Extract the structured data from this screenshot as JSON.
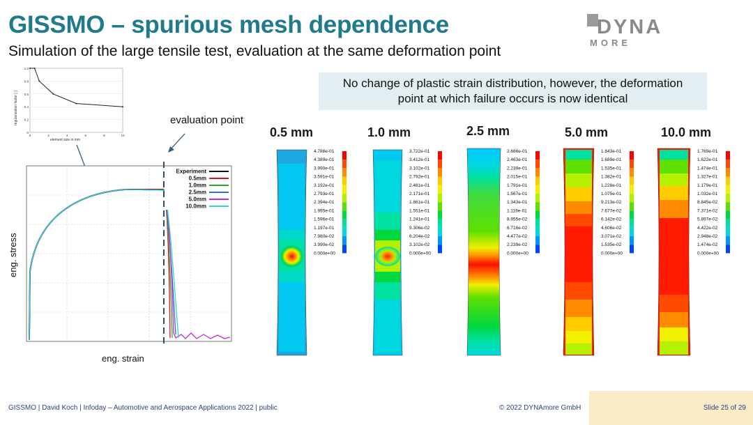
{
  "slide": {
    "title": "GISSMO – spurious mesh dependence",
    "subtitle": "Simulation of the large tensile test, evaluation at the same deformation point",
    "callout_line1": "No change of plastic strain distribution, however, the deformation",
    "callout_line2": "point at which failure occurs is now identical",
    "eval_label": "evaluation point",
    "logo": {
      "top": "DYNA",
      "bottom": "MORE",
      "color": "#8a8a8a"
    }
  },
  "inset_chart": {
    "ylabel": "regularization factor [-]",
    "xlabel": "element size in mm",
    "yticks": [
      "1.0",
      "0.8",
      "0.6",
      "0.4",
      "0.2",
      "0"
    ],
    "xticks": [
      "0",
      "2",
      "4",
      "6",
      "8",
      "10"
    ]
  },
  "main_chart": {
    "xlabel": "eng. strain",
    "ylabel": "eng. stress"
  },
  "chart_data": [
    {
      "type": "line",
      "ylabel": "regularization factor [-]",
      "xlabel": "element size in mm",
      "xlim": [
        0,
        10
      ],
      "ylim": [
        0,
        1.0
      ],
      "series": [
        {
          "x": [
            0,
            0.5,
            1.0,
            2.5,
            5.0,
            10.0
          ],
          "values": [
            1.0,
            1.0,
            0.8,
            0.6,
            0.45,
            0.4
          ]
        }
      ]
    },
    {
      "type": "line",
      "xlabel": "eng. strain",
      "ylabel": "eng. stress",
      "legend": [
        "Experiment",
        "0.5mm",
        "1.0mm",
        "2.5mm",
        "5.0mm",
        "10.0mm"
      ],
      "legend_colors": [
        "#111111",
        "#e8141a",
        "#2faa2f",
        "#2d6fd6",
        "#c62bd9",
        "#2fd6d6"
      ],
      "legend_position": "top-right"
    }
  ],
  "contours": [
    {
      "label": "0.5 mm",
      "values": [
        "4.788e-01",
        "4.389e-01",
        "3.990e-01",
        "3.591e-01",
        "3.192e-01",
        "2.793e-01",
        "2.394e-01",
        "1.995e-01",
        "1.596e-01",
        "1.197e-01",
        "7.980e-02",
        "3.990e-02",
        "0.000e+00"
      ]
    },
    {
      "label": "1.0 mm",
      "values": [
        "3.722e-01",
        "3.412e-01",
        "3.102e-01",
        "2.792e-01",
        "2.481e-01",
        "2.171e-01",
        "1.861e-01",
        "1.551e-01",
        "1.241e-01",
        "9.306e-02",
        "6.204e-02",
        "3.102e-02",
        "0.000e+00"
      ]
    },
    {
      "label": "2.5 mm",
      "values": [
        "2.686e-01",
        "2.463e-01",
        "2.239e-01",
        "2.015e-01",
        "1.791e-01",
        "1.567e-01",
        "1.343e-01",
        "1.119e-01",
        "8.955e-02",
        "6.716e-02",
        "4.477e-02",
        "2.239e-02",
        "0.000e+00"
      ]
    },
    {
      "label": "5.0 mm",
      "values": [
        "1.843e-01",
        "1.689e-01",
        "1.535e-01",
        "1.382e-01",
        "1.228e-01",
        "1.075e-01",
        "9.213e-02",
        "7.677e-02",
        "6.142e-02",
        "4.606e-02",
        "3.071e-02",
        "1.535e-02",
        "0.000e+00"
      ]
    },
    {
      "label": "10.0 mm",
      "values": [
        "1.769e-01",
        "1.622e-01",
        "1.474e-01",
        "1.327e-01",
        "1.179e-01",
        "1.032e-01",
        "8.845e-02",
        "7.371e-02",
        "5.897e-02",
        "4.422e-02",
        "2.948e-02",
        "1.474e-02",
        "0.000e+00"
      ]
    }
  ],
  "colorscale": [
    "#ff0000",
    "#ff4a00",
    "#ff8c00",
    "#ffcc00",
    "#f0f000",
    "#b4f000",
    "#5ee000",
    "#00d840",
    "#00e0a0",
    "#00d8e0",
    "#0096ff",
    "#0046ff",
    "#0000e0"
  ],
  "footer": {
    "left": "GISSMO | David Koch | Infoday – Automotive and Aerospace Applications 2022 | public",
    "copyright": "© 2022 DYNAmore GmbH",
    "slide": "Slide 25 of 29"
  }
}
